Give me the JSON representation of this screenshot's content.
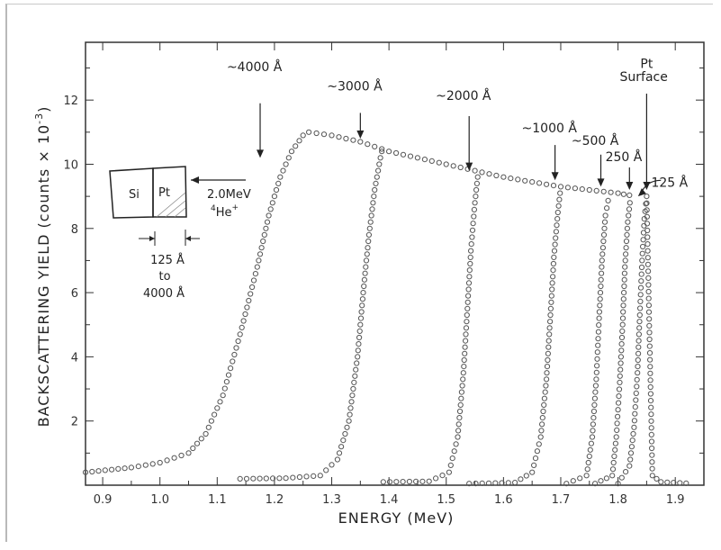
{
  "chart_data": {
    "type": "scatter",
    "xlabel": "ENERGY (MeV)",
    "ylabel": "BACKSCATTERING YIELD (counts × 10",
    "ylabel_exp": "-3",
    "ylabel_close": ")",
    "xlim": [
      0.87,
      1.95
    ],
    "ylim": [
      0,
      13.8
    ],
    "x_ticks": [
      "0.9",
      "1.0",
      "1.1",
      "1.2",
      "1.3",
      "1.4",
      "1.5",
      "1.6",
      "1.7",
      "1.8",
      "1.9"
    ],
    "x_tick_values": [
      0.9,
      1.0,
      1.1,
      1.2,
      1.3,
      1.4,
      1.5,
      1.6,
      1.7,
      1.8,
      1.9
    ],
    "y_ticks": [
      "2",
      "4",
      "6",
      "8",
      "10",
      "12"
    ],
    "y_tick_values": [
      2,
      4,
      6,
      8,
      10,
      12
    ],
    "grid": false,
    "plateau": [
      [
        1.26,
        11.0
      ],
      [
        1.3,
        10.9
      ],
      [
        1.35,
        10.7
      ],
      [
        1.4,
        10.4
      ],
      [
        1.45,
        10.2
      ],
      [
        1.5,
        10.0
      ],
      [
        1.55,
        9.8
      ],
      [
        1.6,
        9.6
      ],
      [
        1.65,
        9.45
      ],
      [
        1.7,
        9.3
      ],
      [
        1.75,
        9.2
      ],
      [
        1.8,
        9.1
      ],
      [
        1.83,
        9.0
      ]
    ],
    "series": [
      {
        "edges": [
          [
            0.87,
            0.4
          ],
          [
            0.95,
            0.55
          ],
          [
            1.0,
            0.7
          ],
          [
            1.05,
            1.0
          ],
          [
            1.08,
            1.6
          ],
          [
            1.11,
            2.8
          ],
          [
            1.14,
            4.7
          ],
          [
            1.17,
            6.8
          ],
          [
            1.19,
            8.4
          ],
          [
            1.21,
            9.6
          ],
          [
            1.23,
            10.4
          ],
          [
            1.25,
            10.9
          ],
          [
            1.26,
            11.0
          ]
        ]
      },
      {
        "edges": [
          [
            1.14,
            0.2
          ],
          [
            1.22,
            0.22
          ],
          [
            1.28,
            0.3
          ],
          [
            1.31,
            0.8
          ],
          [
            1.33,
            2.0
          ],
          [
            1.345,
            4.0
          ],
          [
            1.355,
            6.0
          ],
          [
            1.365,
            7.8
          ],
          [
            1.375,
            9.2
          ],
          [
            1.385,
            10.2
          ],
          [
            1.39,
            10.6
          ]
        ]
      },
      {
        "edges": [
          [
            1.39,
            0.1
          ],
          [
            1.47,
            0.12
          ],
          [
            1.505,
            0.4
          ],
          [
            1.52,
            1.5
          ],
          [
            1.53,
            3.5
          ],
          [
            1.537,
            5.5
          ],
          [
            1.543,
            7.3
          ],
          [
            1.55,
            8.8
          ],
          [
            1.555,
            9.6
          ],
          [
            1.56,
            9.8
          ]
        ]
      },
      {
        "edges": [
          [
            1.54,
            0.05
          ],
          [
            1.62,
            0.08
          ],
          [
            1.65,
            0.4
          ],
          [
            1.665,
            1.5
          ],
          [
            1.675,
            3.3
          ],
          [
            1.682,
            5.3
          ],
          [
            1.688,
            7.1
          ],
          [
            1.695,
            8.5
          ],
          [
            1.7,
            9.3
          ]
        ]
      },
      {
        "edges": [
          [
            1.71,
            0.05
          ],
          [
            1.745,
            0.3
          ],
          [
            1.755,
            1.5
          ],
          [
            1.762,
            3.3
          ],
          [
            1.767,
            5.2
          ],
          [
            1.772,
            7.0
          ],
          [
            1.778,
            8.4
          ],
          [
            1.785,
            9.1
          ]
        ]
      },
      {
        "edges": [
          [
            1.76,
            0.05
          ],
          [
            1.79,
            0.3
          ],
          [
            1.797,
            1.5
          ],
          [
            1.803,
            3.2
          ],
          [
            1.808,
            5.0
          ],
          [
            1.812,
            6.8
          ],
          [
            1.817,
            8.2
          ],
          [
            1.822,
            9.0
          ]
        ]
      },
      {
        "edges": [
          [
            1.8,
            0.05
          ],
          [
            1.82,
            0.6
          ],
          [
            1.828,
            1.8
          ],
          [
            1.834,
            3.5
          ],
          [
            1.838,
            5.3
          ],
          [
            1.842,
            7.0
          ],
          [
            1.846,
            8.3
          ],
          [
            1.85,
            9.0
          ],
          [
            1.86,
            0.3
          ],
          [
            1.875,
            0.1
          ],
          [
            1.93,
            0.05
          ]
        ]
      }
    ],
    "annotations": [
      {
        "text": "~4000 Å",
        "x": 1.165,
        "y": 12.9,
        "arrow_from": 11.9,
        "arrow_to": 10.2
      },
      {
        "text": "~3000 Å",
        "x": 1.34,
        "y": 12.3,
        "arrow_from": 11.6,
        "arrow_to": 10.8
      },
      {
        "text": "~2000 Å",
        "x": 1.53,
        "y": 12.0,
        "arrow_from": 11.5,
        "arrow_to": 9.8
      },
      {
        "text": "~1000 Å",
        "x": 1.68,
        "y": 11.0,
        "arrow_from": 10.6,
        "arrow_to": 9.5
      },
      {
        "text": "~500 Å",
        "x": 1.76,
        "y": 10.6,
        "arrow_from": 10.3,
        "arrow_to": 9.3
      },
      {
        "text": "250 Å",
        "x": 1.81,
        "y": 10.1,
        "arrow_from": 9.9,
        "arrow_to": 9.2
      },
      {
        "text": "Pt",
        "x": 1.85,
        "y": 13.0
      },
      {
        "text": "Surface",
        "x": 1.845,
        "y": 12.6,
        "arrow_from": 12.2,
        "arrow_to": 9.2
      },
      {
        "text": "125 Å",
        "x": 1.89,
        "y": 9.3
      }
    ],
    "inset": {
      "si_label": "Si",
      "pt_label": "Pt",
      "beam_energy": "2.0MeV",
      "beam_ion": "He",
      "beam_ion_mass": "4",
      "beam_ion_charge": "+",
      "range_low": "125 Å",
      "range_to": "to",
      "range_high": "4000 Å"
    }
  }
}
